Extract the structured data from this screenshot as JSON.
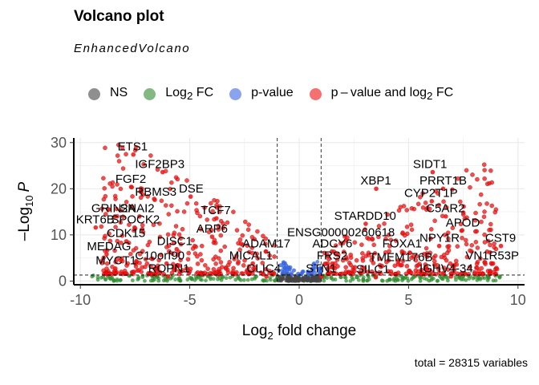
{
  "title": "Volcano plot",
  "subtitle": "EnhancedVolcano",
  "legend": [
    {
      "label": "NS",
      "sub": "",
      "suffix": "",
      "color": "#444444"
    },
    {
      "label": "Log",
      "sub": "2",
      "suffix": " FC",
      "color": "#2e8b2e"
    },
    {
      "label": "p-value",
      "sub": "",
      "suffix": "",
      "color": "#3a66e0"
    },
    {
      "label": "p – value and log",
      "sub": "2",
      "suffix": " FC",
      "color": "#ee1111"
    }
  ],
  "caption": "total = 28315 variables",
  "chart_data": {
    "type": "scatter",
    "xlabel_main": "Log",
    "xlabel_sub": "2",
    "xlabel_rest": " fold change",
    "ylabel_prefix": "–Log",
    "ylabel_sub": "10",
    "ylabel_var": "P",
    "xlim": [
      -10.3,
      10.3
    ],
    "ylim": [
      -0.8,
      31
    ],
    "xticks": [
      -10,
      -5,
      0,
      5,
      10
    ],
    "xtick_labels": [
      "-10",
      "-5",
      "0",
      "5",
      "10"
    ],
    "yticks": [
      0,
      10,
      20,
      30
    ],
    "ytick_labels": [
      "0",
      "10",
      "20",
      "30"
    ],
    "fc_cutoff": [
      -1,
      1
    ],
    "p_cutoff_y": 1.3,
    "grid": true,
    "legend_position": "top",
    "series_colors": {
      "NS": "#444444",
      "Log2 FC": "#2e8b2e",
      "p-value": "#3a66e0",
      "p-value and log2 FC": "#ee1111"
    },
    "labeled_genes": [
      {
        "name": "ETS1",
        "x": -8.3,
        "y": 28.3
      },
      {
        "name": "IGF2BP3",
        "x": -7.5,
        "y": 24.5
      },
      {
        "name": "FGF2",
        "x": -8.4,
        "y": 21.3
      },
      {
        "name": "RBMS3",
        "x": -7.5,
        "y": 18.5
      },
      {
        "name": "DSE",
        "x": -5.5,
        "y": 19.2
      },
      {
        "name": "GRIN2A",
        "x": -9.5,
        "y": 14.9
      },
      {
        "name": "SNAI2",
        "x": -8.2,
        "y": 14.9
      },
      {
        "name": "TCF7",
        "x": -4.5,
        "y": 14.5
      },
      {
        "name": "KRT6B",
        "x": -10.2,
        "y": 12.5
      },
      {
        "name": "SPOCK2",
        "x": -8.6,
        "y": 12.5
      },
      {
        "name": "CDK15",
        "x": -8.8,
        "y": 9.5
      },
      {
        "name": "ARP6",
        "x": -4.7,
        "y": 10.5
      },
      {
        "name": "DISC1",
        "x": -6.5,
        "y": 7.8
      },
      {
        "name": "MEDAG",
        "x": -9.7,
        "y": 6.7
      },
      {
        "name": "C10orf90",
        "x": -7.5,
        "y": 4.7
      },
      {
        "name": "MICAL1",
        "x": -3.2,
        "y": 4.7
      },
      {
        "name": "MYCT1",
        "x": -9.3,
        "y": 3.6
      },
      {
        "name": "ROPN1",
        "x": -6.9,
        "y": 1.9
      },
      {
        "name": "ADAM17",
        "x": -2.6,
        "y": 7.3
      },
      {
        "name": "CLIC4",
        "x": -2.4,
        "y": 1.9
      },
      {
        "name": "STN1",
        "x": 0.3,
        "y": 1.9
      },
      {
        "name": "FRS2",
        "x": 0.8,
        "y": 4.7
      },
      {
        "name": "ADCY6",
        "x": 0.6,
        "y": 7.3
      },
      {
        "name": "ENSG00000260618",
        "x": -0.55,
        "y": 9.7
      },
      {
        "name": "STARDD10",
        "x": 1.6,
        "y": 13.3
      },
      {
        "name": "FOXA1",
        "x": 3.8,
        "y": 7.3
      },
      {
        "name": "TMEM176B",
        "x": 3.2,
        "y": 4.3
      },
      {
        "name": "SILC1",
        "x": 2.6,
        "y": 1.7
      },
      {
        "name": "IGHV4-34",
        "x": 5.5,
        "y": 1.9
      },
      {
        "name": "XBP1",
        "x": 2.8,
        "y": 20.9
      },
      {
        "name": "SIDT1",
        "x": 5.2,
        "y": 24.5
      },
      {
        "name": "PRRT1B",
        "x": 5.5,
        "y": 20.9
      },
      {
        "name": "CYP2T1P",
        "x": 4.8,
        "y": 18.2
      },
      {
        "name": "C5AR2",
        "x": 5.8,
        "y": 14.9
      },
      {
        "name": "APOD",
        "x": 6.7,
        "y": 11.8
      },
      {
        "name": "NPY1R",
        "x": 5.5,
        "y": 8.5
      },
      {
        "name": "CST9",
        "x": 8.5,
        "y": 8.5
      },
      {
        "name": "VN1R53P",
        "x": 7.6,
        "y": 4.7
      }
    ]
  }
}
